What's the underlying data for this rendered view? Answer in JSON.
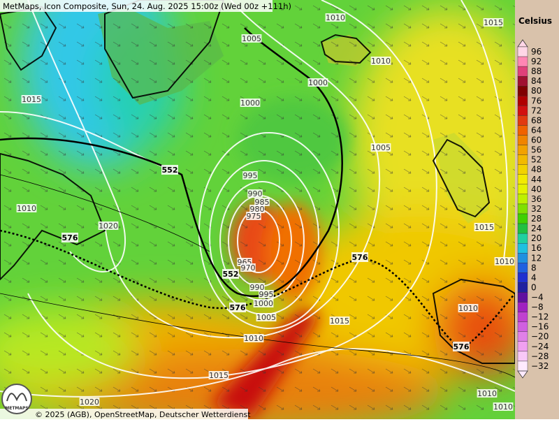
{
  "header": {
    "title": "MetMaps, Icon Composite, Sun, 24. Aug. 2025 15:00z (Wed 00z +111h)"
  },
  "legend": {
    "unit": "Celsius",
    "steps": [
      {
        "label": "96",
        "color": "#ffd6e6"
      },
      {
        "label": "92",
        "color": "#ff86b4"
      },
      {
        "label": "88",
        "color": "#e0407a"
      },
      {
        "label": "84",
        "color": "#a01030"
      },
      {
        "label": "80",
        "color": "#800000"
      },
      {
        "label": "76",
        "color": "#b00000"
      },
      {
        "label": "72",
        "color": "#d21010"
      },
      {
        "label": "68",
        "color": "#e23a10"
      },
      {
        "label": "64",
        "color": "#f06200"
      },
      {
        "label": "60",
        "color": "#f08400"
      },
      {
        "label": "56",
        "color": "#f2a200"
      },
      {
        "label": "52",
        "color": "#f2ba00"
      },
      {
        "label": "48",
        "color": "#f2d200"
      },
      {
        "label": "44",
        "color": "#f2ea00"
      },
      {
        "label": "40",
        "color": "#e4f200"
      },
      {
        "label": "36",
        "color": "#bef000"
      },
      {
        "label": "32",
        "color": "#80e000"
      },
      {
        "label": "28",
        "color": "#40d000"
      },
      {
        "label": "24",
        "color": "#20c040"
      },
      {
        "label": "20",
        "color": "#20d0a0"
      },
      {
        "label": "16",
        "color": "#20c0e0"
      },
      {
        "label": "12",
        "color": "#2090e0"
      },
      {
        "label": "8",
        "color": "#2060e0"
      },
      {
        "label": "4",
        "color": "#2030d0"
      },
      {
        "label": "0",
        "color": "#2020a0"
      },
      {
        "label": "−4",
        "color": "#6010a0"
      },
      {
        "label": "−8",
        "color": "#a020c0"
      },
      {
        "label": "−12",
        "color": "#c040d0"
      },
      {
        "label": "−16",
        "color": "#d060e0"
      },
      {
        "label": "−20",
        "color": "#e080e8"
      },
      {
        "label": "−24",
        "color": "#f0a0f0"
      },
      {
        "label": "−28",
        "color": "#f8c8f8"
      },
      {
        "label": "−32",
        "color": "#ffeaff"
      }
    ]
  },
  "isobar_labels": [
    "1010",
    "1015",
    "1005",
    "1010",
    "1000",
    "1015",
    "1000",
    "1005",
    "995",
    "990",
    "985",
    "980",
    "975",
    "1010",
    "1020",
    "1015",
    "1010",
    "965",
    "970",
    "990",
    "995",
    "1000",
    "1010",
    "1005",
    "1015",
    "1010",
    "1015",
    "1010",
    "1020",
    "1010"
  ],
  "geopotential_labels": [
    "552",
    "552",
    "576",
    "576",
    "576",
    "576"
  ],
  "footer": {
    "copyright": "© 2025 (AGB), OpenStreetMap, Deutscher Wetterdienst",
    "logo": "METMAPS"
  }
}
